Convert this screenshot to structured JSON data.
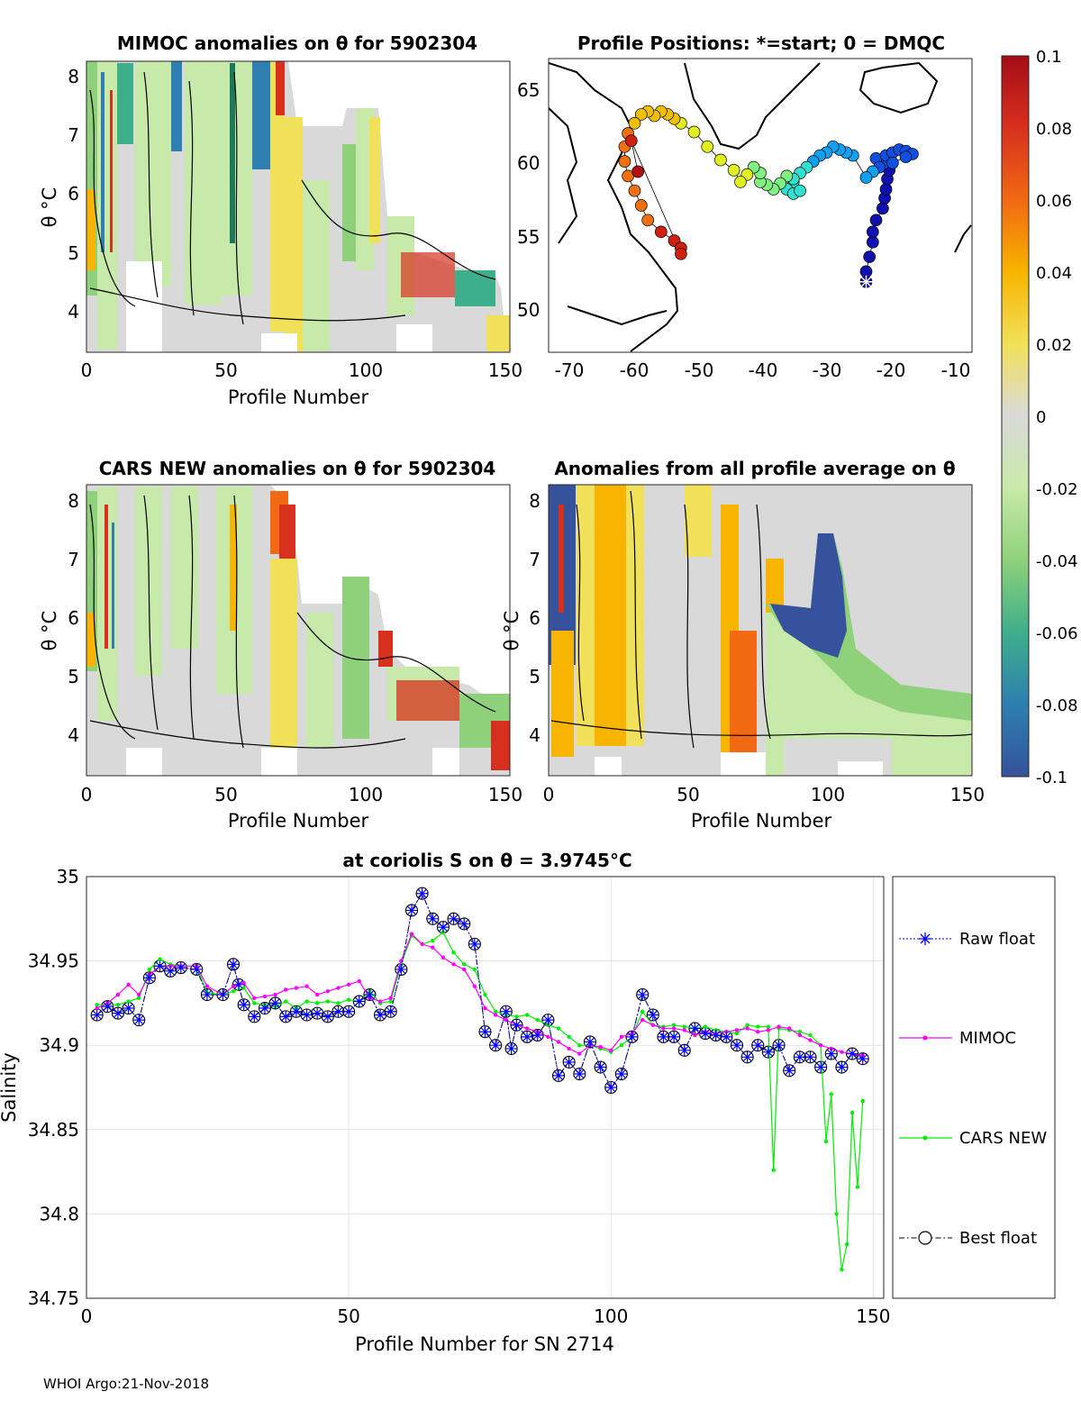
{
  "footer": "WHOI Argo:21-Nov-2018",
  "colorbar": {
    "ticks": [
      "0.1",
      "0.08",
      "0.06",
      "0.04",
      "0.02",
      "0",
      "-0.02",
      "-0.04",
      "-0.06",
      "-0.08",
      "-0.1"
    ],
    "range": [
      -0.1,
      0.1
    ],
    "stops": [
      "#a50d17",
      "#d7301f",
      "#f16913",
      "#f7b400",
      "#f1e05a",
      "#d9d9d9",
      "#c7e9a9",
      "#8fd17b",
      "#3fae8a",
      "#2e7fb0",
      "#36529c"
    ]
  },
  "panels": {
    "mimoc": {
      "title": "MIMOC anomalies on θ  for 5902304",
      "xlabel": "Profile Number",
      "ylabel": "θ °C",
      "xticks": [
        "0",
        "50",
        "100",
        "150"
      ],
      "yticks": [
        "8",
        "7",
        "6",
        "5",
        "4"
      ]
    },
    "positions": {
      "title": "Profile Positions: *=start; 0 = DMQC",
      "xticks": [
        "-70",
        "-60",
        "-50",
        "-40",
        "-30",
        "-20",
        "-10"
      ],
      "yticks": [
        "65",
        "60",
        "55",
        "50"
      ]
    },
    "cars": {
      "title": "CARS NEW anomalies on θ for 5902304",
      "xlabel": "Profile Number",
      "ylabel": "θ °C",
      "xticks": [
        "0",
        "50",
        "100",
        "150"
      ],
      "yticks": [
        "8",
        "7",
        "6",
        "5",
        "4"
      ]
    },
    "allavg": {
      "title": "Anomalies from all profile average on θ",
      "xlabel": "Profile Number",
      "ylabel": "θ °C",
      "xticks": [
        "0",
        "50",
        "100",
        "150"
      ],
      "yticks": [
        "8",
        "7",
        "6",
        "5",
        "4"
      ]
    }
  },
  "chart_data": [
    {
      "type": "line",
      "title": "at coriolis S on θ = 3.9745°C",
      "xlabel": "Profile Number for SN 2714",
      "ylabel": "Salinity",
      "xlim": [
        0,
        152
      ],
      "ylim": [
        34.75,
        35.0
      ],
      "xticks": [
        "0",
        "50",
        "100",
        "150"
      ],
      "yticks": [
        "35",
        "34.95",
        "34.9",
        "34.85",
        "34.8",
        "34.75"
      ],
      "grid": true,
      "legend_position": "outside-right",
      "series": [
        {
          "name": "Raw float",
          "color": "#0000ff",
          "marker": "star",
          "line": "dotted",
          "x": [
            2,
            4,
            6,
            8,
            10,
            12,
            14,
            16,
            18,
            21,
            23,
            26,
            28,
            29,
            30,
            32,
            34,
            36,
            38,
            40,
            42,
            44,
            46,
            48,
            50,
            52,
            54,
            56,
            58,
            60,
            62,
            64,
            66,
            68,
            70,
            72,
            74,
            76,
            78,
            80,
            81,
            82,
            84,
            86,
            88,
            90,
            92,
            94,
            96,
            98,
            100,
            102,
            104,
            106,
            108,
            110,
            112,
            114,
            116,
            118,
            120,
            122,
            124,
            126,
            128,
            130,
            132,
            134,
            136,
            138,
            140,
            142,
            144,
            146,
            148
          ],
          "y": [
            34.918,
            34.923,
            34.919,
            34.922,
            34.915,
            34.94,
            34.947,
            34.944,
            34.946,
            34.945,
            34.93,
            34.93,
            34.948,
            34.936,
            34.924,
            34.917,
            34.922,
            34.925,
            34.917,
            34.92,
            34.918,
            34.919,
            34.917,
            34.92,
            34.92,
            34.926,
            34.93,
            34.918,
            34.92,
            34.945,
            34.98,
            34.99,
            34.975,
            34.97,
            34.975,
            34.972,
            34.96,
            34.908,
            34.9,
            34.92,
            34.898,
            34.912,
            34.905,
            34.906,
            34.915,
            34.882,
            34.89,
            34.883,
            34.902,
            34.887,
            34.875,
            34.883,
            34.905,
            34.93,
            34.918,
            34.905,
            34.905,
            34.897,
            34.91,
            34.907,
            34.906,
            34.905,
            34.9,
            34.893,
            34.9,
            34.896,
            34.9,
            34.885,
            34.893,
            34.893,
            34.887,
            34.895,
            34.887,
            34.895,
            34.892
          ]
        },
        {
          "name": "MIMOC",
          "color": "#ff00ff",
          "marker": "dot",
          "line": "solid",
          "x": [
            2,
            4,
            6,
            8,
            10,
            12,
            14,
            16,
            18,
            21,
            23,
            26,
            28,
            30,
            32,
            34,
            36,
            38,
            40,
            42,
            44,
            46,
            48,
            50,
            52,
            54,
            56,
            58,
            60,
            62,
            64,
            66,
            68,
            70,
            72,
            74,
            76,
            78,
            80,
            82,
            84,
            86,
            88,
            90,
            92,
            94,
            96,
            98,
            100,
            102,
            104,
            106,
            108,
            110,
            112,
            114,
            116,
            118,
            120,
            122,
            124,
            126,
            128,
            130,
            132,
            134,
            136,
            138,
            140,
            142,
            144,
            146,
            148
          ],
          "y": [
            34.922,
            34.925,
            34.93,
            34.936,
            34.93,
            34.942,
            34.947,
            34.947,
            34.947,
            34.947,
            34.935,
            34.93,
            34.935,
            34.937,
            34.928,
            34.929,
            34.93,
            34.933,
            34.934,
            34.935,
            34.93,
            34.932,
            34.934,
            34.936,
            34.938,
            34.928,
            34.926,
            34.928,
            34.95,
            34.966,
            34.96,
            34.958,
            34.952,
            34.948,
            34.945,
            34.935,
            34.922,
            34.918,
            34.915,
            34.912,
            34.91,
            34.908,
            34.905,
            34.902,
            34.898,
            34.895,
            34.9,
            34.899,
            34.897,
            34.905,
            34.907,
            34.915,
            34.912,
            34.91,
            34.91,
            34.909,
            34.906,
            34.908,
            34.907,
            34.908,
            34.909,
            34.91,
            34.908,
            34.909,
            34.911,
            34.91,
            34.906,
            34.903,
            34.9,
            34.898,
            34.896,
            34.895,
            34.894
          ]
        },
        {
          "name": "CARS NEW",
          "color": "#00ee00",
          "marker": "dot",
          "line": "solid",
          "x": [
            2,
            4,
            6,
            8,
            10,
            12,
            14,
            16,
            18,
            21,
            23,
            26,
            28,
            30,
            32,
            34,
            36,
            38,
            40,
            42,
            44,
            46,
            48,
            50,
            52,
            54,
            56,
            58,
            60,
            62,
            64,
            66,
            68,
            70,
            72,
            74,
            76,
            78,
            80,
            82,
            84,
            86,
            88,
            90,
            92,
            94,
            96,
            98,
            100,
            102,
            104,
            106,
            108,
            110,
            112,
            114,
            116,
            118,
            120,
            122,
            124,
            126,
            128,
            130,
            131,
            132,
            134,
            136,
            138,
            140,
            141,
            142,
            143,
            144,
            145,
            146,
            147,
            148
          ],
          "y": [
            34.924,
            34.924,
            34.924,
            34.926,
            34.928,
            34.945,
            34.951,
            34.948,
            34.947,
            34.947,
            34.931,
            34.93,
            34.932,
            34.934,
            34.925,
            34.924,
            34.923,
            34.926,
            34.922,
            34.926,
            34.925,
            34.926,
            34.925,
            34.927,
            34.926,
            34.932,
            34.925,
            34.926,
            34.948,
            34.965,
            34.96,
            34.962,
            34.967,
            34.955,
            34.948,
            34.945,
            34.93,
            34.92,
            34.918,
            34.917,
            34.918,
            34.915,
            34.912,
            34.91,
            34.905,
            34.9,
            34.9,
            34.898,
            34.896,
            34.9,
            34.905,
            34.92,
            34.912,
            34.911,
            34.912,
            34.911,
            34.91,
            34.911,
            34.909,
            34.908,
            34.907,
            34.912,
            34.911,
            34.911,
            34.826,
            34.91,
            34.909,
            34.908,
            34.906,
            34.9,
            34.843,
            34.871,
            34.8,
            34.767,
            34.782,
            34.86,
            34.816,
            34.867
          ]
        },
        {
          "name": "Best float",
          "color": "#000000",
          "marker": "open-circle",
          "line": "dash-dot",
          "x": [
            2,
            4,
            6,
            8,
            10,
            12,
            14,
            16,
            18,
            21,
            23,
            26,
            28,
            29,
            30,
            32,
            34,
            36,
            38,
            40,
            42,
            44,
            46,
            48,
            50,
            52,
            54,
            56,
            58,
            60,
            62,
            64,
            66,
            68,
            70,
            72,
            74,
            76,
            78,
            80,
            81,
            82,
            84,
            86,
            88,
            90,
            92,
            94,
            96,
            98,
            100,
            102,
            104,
            106,
            108,
            110,
            112,
            114,
            116,
            118,
            120,
            122,
            124,
            126,
            128,
            130,
            132,
            134,
            136,
            138,
            140,
            142,
            144,
            146,
            148
          ],
          "y": [
            34.918,
            34.923,
            34.919,
            34.922,
            34.915,
            34.94,
            34.947,
            34.944,
            34.946,
            34.945,
            34.93,
            34.93,
            34.948,
            34.936,
            34.924,
            34.917,
            34.922,
            34.925,
            34.917,
            34.92,
            34.918,
            34.919,
            34.917,
            34.92,
            34.92,
            34.926,
            34.93,
            34.918,
            34.92,
            34.945,
            34.98,
            34.99,
            34.975,
            34.97,
            34.975,
            34.972,
            34.96,
            34.908,
            34.9,
            34.92,
            34.898,
            34.912,
            34.905,
            34.906,
            34.915,
            34.882,
            34.89,
            34.883,
            34.902,
            34.887,
            34.875,
            34.883,
            34.905,
            34.93,
            34.918,
            34.905,
            34.905,
            34.897,
            34.91,
            34.907,
            34.906,
            34.905,
            34.9,
            34.893,
            34.9,
            34.896,
            34.9,
            34.885,
            34.893,
            34.893,
            34.887,
            34.895,
            34.887,
            34.895,
            34.892
          ]
        }
      ]
    },
    {
      "type": "scatter",
      "title": "Profile Positions: *=start; 0 = DMQC",
      "xlim": [
        -72,
        -8
      ],
      "ylim": [
        47,
        67
      ],
      "start_marker": "star",
      "positions": [
        [
          -24,
          51.8
        ],
        [
          -24,
          52.5
        ],
        [
          -23.5,
          53.5
        ],
        [
          -23,
          54.5
        ],
        [
          -23,
          55.2
        ],
        [
          -22.5,
          56
        ],
        [
          -21.5,
          56.8
        ],
        [
          -21.2,
          57.5
        ],
        [
          -21,
          58.1
        ],
        [
          -20.8,
          58.8
        ],
        [
          -20.5,
          59.4
        ],
        [
          -21.5,
          59.8
        ],
        [
          -22.5,
          60.2
        ],
        [
          -21,
          60.4
        ],
        [
          -20,
          60.6
        ],
        [
          -19,
          60.8
        ],
        [
          -18,
          60.7
        ],
        [
          -17,
          60.5
        ],
        [
          -18,
          60.3
        ],
        [
          -20,
          59.9
        ],
        [
          -22,
          59.6
        ],
        [
          -23,
          59.3
        ],
        [
          -24,
          58.9
        ],
        [
          -26,
          60.4
        ],
        [
          -27,
          60.6
        ],
        [
          -28,
          60.8
        ],
        [
          -29,
          61
        ],
        [
          -30,
          60.6
        ],
        [
          -31,
          60.4
        ],
        [
          -32,
          60
        ],
        [
          -33,
          59.6
        ],
        [
          -34,
          59.2
        ],
        [
          -35,
          58.6
        ],
        [
          -36,
          58.1
        ],
        [
          -35,
          57.8
        ],
        [
          -34,
          58
        ],
        [
          -35,
          58.8
        ],
        [
          -36,
          59
        ],
        [
          -37,
          58.5
        ],
        [
          -38,
          58.1
        ],
        [
          -39,
          58.4
        ],
        [
          -40,
          58.6
        ],
        [
          -40,
          59.2
        ],
        [
          -41,
          59.6
        ],
        [
          -42,
          59.1
        ],
        [
          -43,
          58.6
        ],
        [
          -44,
          59.4
        ],
        [
          -46,
          60.1
        ],
        [
          -48,
          61
        ],
        [
          -50,
          62
        ],
        [
          -52,
          62.6
        ],
        [
          -53,
          62.9
        ],
        [
          -54,
          63.2
        ],
        [
          -55,
          63.4
        ],
        [
          -56,
          63.1
        ],
        [
          -57,
          63.4
        ],
        [
          -58,
          63.2
        ],
        [
          -59,
          62.6
        ],
        [
          -60,
          61.9
        ],
        [
          -60.5,
          61
        ],
        [
          -60.5,
          60
        ],
        [
          -60,
          59
        ],
        [
          -59,
          58
        ],
        [
          -58,
          57
        ],
        [
          -57,
          56
        ],
        [
          -55,
          55.2
        ],
        [
          -53,
          54.6
        ],
        [
          -52,
          54.1
        ],
        [
          -52,
          53.7
        ],
        [
          -59.5,
          61.4
        ],
        [
          -58.5,
          59.3
        ]
      ]
    }
  ]
}
